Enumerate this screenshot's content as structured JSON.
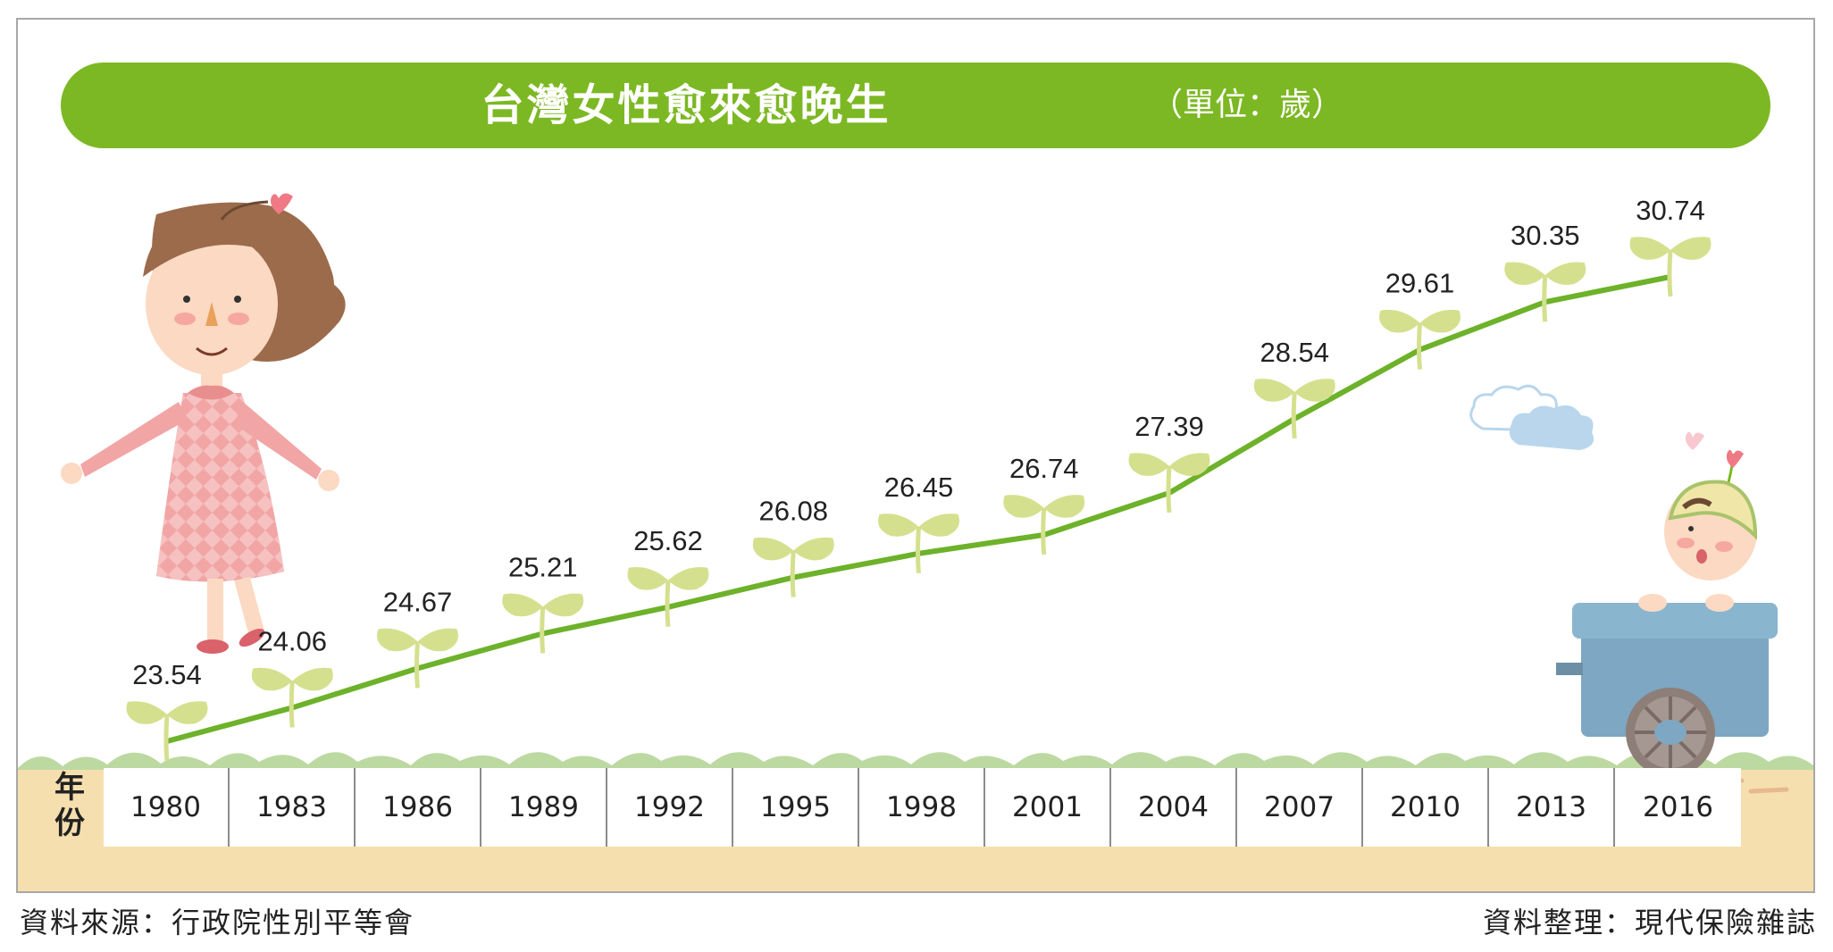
{
  "title": "台灣女性愈來愈晚生",
  "unit": "（單位：歲）",
  "source_left": "資料來源：行政院性別平等會",
  "source_right": "資料整理：現代保險雜誌",
  "year_header": "年份",
  "colors": {
    "title_bar": "#7cb823",
    "line": "#6db22a",
    "sprout": "#d5e08e",
    "ground": "#f6dfae",
    "grass": "#bcd9a1"
  },
  "chart_data": {
    "type": "line",
    "title": "台灣女性愈來愈晚生",
    "xlabel": "年份",
    "ylabel": "",
    "unit": "（單位：歲）",
    "categories": [
      "1980",
      "1983",
      "1986",
      "1989",
      "1992",
      "1995",
      "1998",
      "2001",
      "2004",
      "2007",
      "2010",
      "2013",
      "2016"
    ],
    "values": [
      23.54,
      24.06,
      24.67,
      25.21,
      25.62,
      26.08,
      26.45,
      26.74,
      27.39,
      28.54,
      29.61,
      30.35,
      30.74
    ],
    "labels": [
      "23.54",
      "24.06",
      "24.67",
      "25.21",
      "25.62",
      "26.08",
      "26.45",
      "26.74",
      "27.39",
      "28.54",
      "29.61",
      "30.35",
      "30.74"
    ],
    "ylim": [
      23.54,
      30.74
    ],
    "grid": false,
    "legend": "none"
  }
}
